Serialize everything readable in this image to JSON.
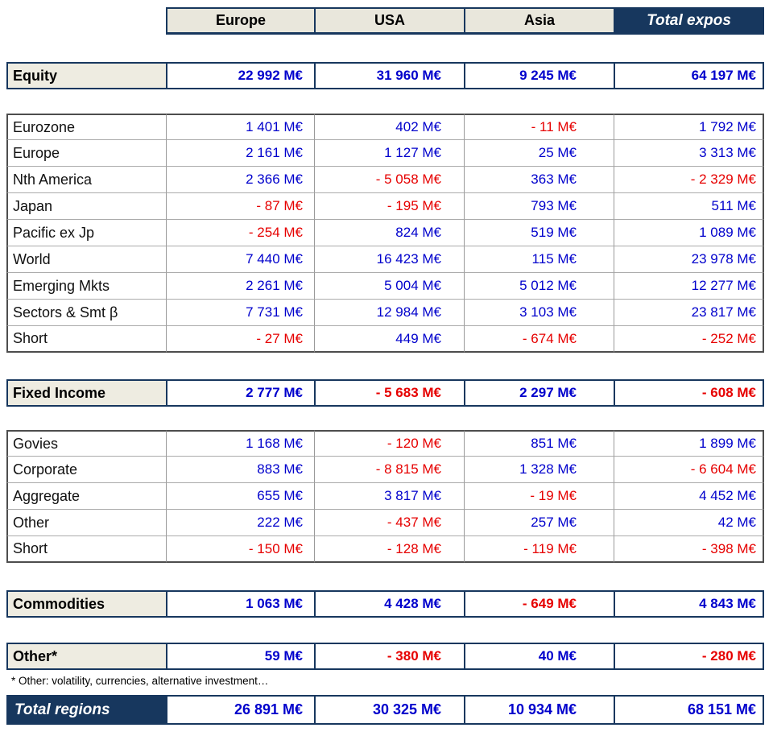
{
  "colors": {
    "navy": "#17375E",
    "label_beige": "#EEECE1",
    "header_beige": "#E9E7DC",
    "positive_value_blue": "#0000CC",
    "negative_value_red": "#E60000"
  },
  "table": {
    "columns": [
      "Europe",
      "USA",
      "Asia",
      "Total expos"
    ],
    "equity": {
      "label": "Equity",
      "values": [
        "22 992 M€",
        "31 960 M€",
        "9 245 M€",
        "64 197 M€"
      ]
    },
    "equity_rows": [
      {
        "label": "Eurozone",
        "values": [
          "1 401 M€",
          "402 M€",
          "- 11 M€",
          "1 792 M€"
        ]
      },
      {
        "label": "Europe",
        "values": [
          "2 161 M€",
          "1 127 M€",
          "25 M€",
          "3 313 M€"
        ]
      },
      {
        "label": "Nth America",
        "values": [
          "2 366 M€",
          "- 5 058 M€",
          "363 M€",
          "- 2 329 M€"
        ]
      },
      {
        "label": "Japan",
        "values": [
          "- 87 M€",
          "- 195 M€",
          "793 M€",
          "511 M€"
        ]
      },
      {
        "label": "Pacific ex Jp",
        "values": [
          "- 254 M€",
          "824 M€",
          "519 M€",
          "1 089 M€"
        ]
      },
      {
        "label": "World",
        "values": [
          "7 440 M€",
          "16 423 M€",
          "115 M€",
          "23 978 M€"
        ]
      },
      {
        "label": "Emerging Mkts",
        "values": [
          "2 261 M€",
          "5 004 M€",
          "5 012 M€",
          "12 277 M€"
        ]
      },
      {
        "label": "Sectors & Smt β",
        "values": [
          "7 731 M€",
          "12 984 M€",
          "3 103 M€",
          "23 817 M€"
        ]
      },
      {
        "label": "Short",
        "values": [
          "- 27 M€",
          "449 M€",
          "- 674 M€",
          "- 252 M€"
        ]
      }
    ],
    "fixed_income": {
      "label": "Fixed Income",
      "values": [
        "2 777 M€",
        "- 5 683 M€",
        "2 297 M€",
        "- 608 M€"
      ]
    },
    "fixed_income_rows": [
      {
        "label": "Govies",
        "values": [
          "1 168 M€",
          "- 120 M€",
          "851 M€",
          "1 899 M€"
        ]
      },
      {
        "label": "Corporate",
        "values": [
          "883 M€",
          "- 8 815 M€",
          "1 328 M€",
          "- 6 604 M€"
        ]
      },
      {
        "label": "Aggregate",
        "values": [
          "655 M€",
          "3 817 M€",
          "- 19 M€",
          "4 452 M€"
        ]
      },
      {
        "label": "Other",
        "values": [
          "222 M€",
          "- 437 M€",
          "257 M€",
          "42 M€"
        ]
      },
      {
        "label": "Short",
        "values": [
          "- 150 M€",
          "- 128 M€",
          "- 119 M€",
          "- 398 M€"
        ]
      }
    ],
    "commodities": {
      "label": "Commodities",
      "values": [
        "1 063 M€",
        "4 428 M€",
        "- 649 M€",
        "4 843 M€"
      ]
    },
    "other": {
      "label": "Other*",
      "values": [
        "59 M€",
        "- 380 M€",
        "40 M€",
        "- 280 M€"
      ]
    },
    "footnote": "* Other: volatility, currencies, alternative investment…",
    "total_regions": {
      "label": "Total regions",
      "values": [
        "26 891 M€",
        "30 325 M€",
        "10 934 M€",
        "68 151 M€"
      ]
    }
  }
}
